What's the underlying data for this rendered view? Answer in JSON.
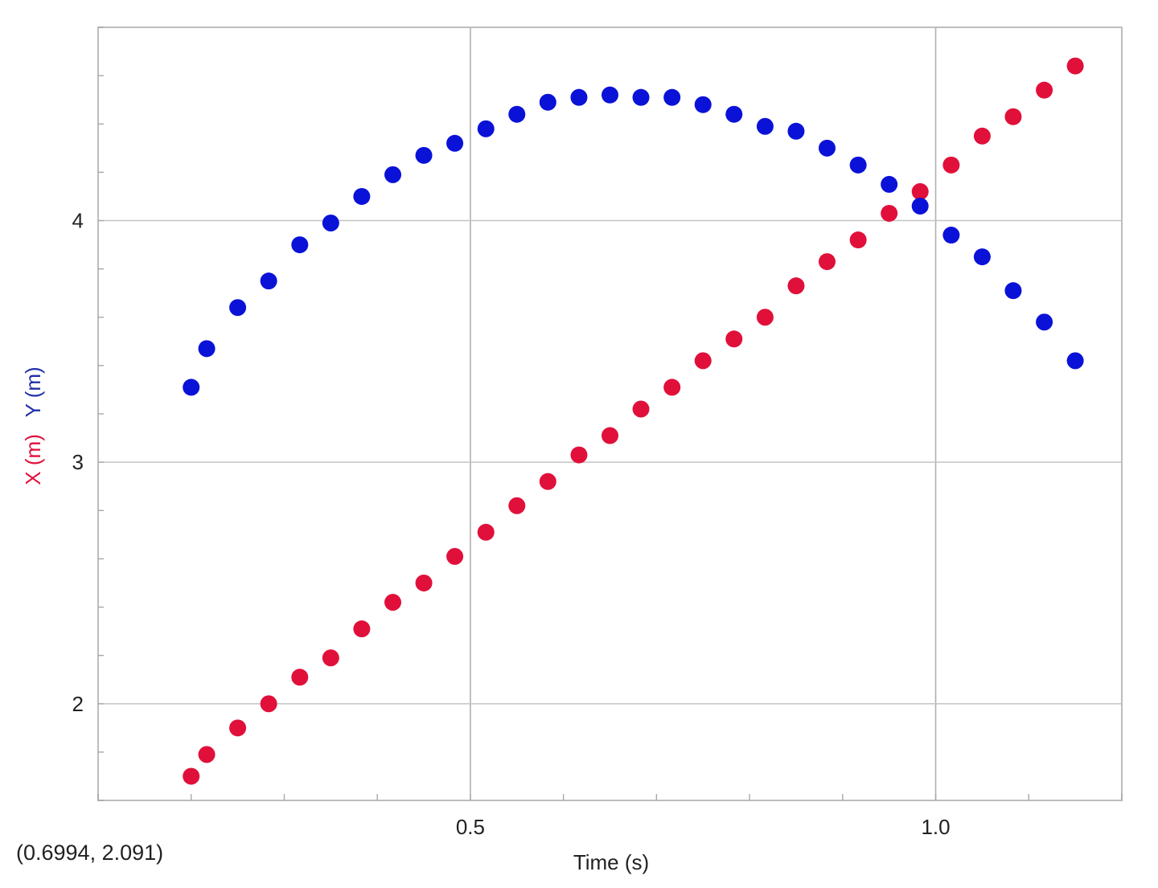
{
  "chart_data": {
    "type": "scatter",
    "xlabel": "Time (s)",
    "ylabel_parts": [
      {
        "text": "X (m)",
        "color": "#e0103a"
      },
      {
        "text": "Y (m)",
        "color": "#1f2fa8"
      }
    ],
    "xlim": [
      0.1,
      1.2
    ],
    "ylim": [
      1.6,
      4.8
    ],
    "x_ticks": [
      0.5,
      1.0
    ],
    "x_tick_labels": [
      "0.5",
      "1.0"
    ],
    "y_ticks": [
      2,
      3,
      4
    ],
    "y_tick_labels": [
      "2",
      "3",
      "4"
    ],
    "grid": true,
    "readout": "(0.6994, 2.091)",
    "series": [
      {
        "key": "x",
        "color": "#e0103a",
        "points": [
          [
            0.2,
            1.7
          ],
          [
            0.2167,
            1.79
          ],
          [
            0.25,
            1.9
          ],
          [
            0.2833,
            2.0
          ],
          [
            0.3167,
            2.11
          ],
          [
            0.35,
            2.19
          ],
          [
            0.3833,
            2.31
          ],
          [
            0.4167,
            2.42
          ],
          [
            0.45,
            2.5
          ],
          [
            0.4833,
            2.61
          ],
          [
            0.5167,
            2.71
          ],
          [
            0.55,
            2.82
          ],
          [
            0.5833,
            2.92
          ],
          [
            0.6167,
            3.03
          ],
          [
            0.65,
            3.11
          ],
          [
            0.6833,
            3.22
          ],
          [
            0.7167,
            3.31
          ],
          [
            0.75,
            3.42
          ],
          [
            0.7833,
            3.51
          ],
          [
            0.8167,
            3.6
          ],
          [
            0.85,
            3.73
          ],
          [
            0.8833,
            3.83
          ],
          [
            0.9167,
            3.92
          ],
          [
            0.95,
            4.03
          ],
          [
            0.9833,
            4.12
          ],
          [
            1.0167,
            4.23
          ],
          [
            1.05,
            4.35
          ],
          [
            1.0833,
            4.43
          ],
          [
            1.1167,
            4.54
          ],
          [
            1.15,
            4.64
          ]
        ]
      },
      {
        "key": "y",
        "color": "#0a12d8",
        "points": [
          [
            0.2,
            3.31
          ],
          [
            0.2167,
            3.47
          ],
          [
            0.25,
            3.64
          ],
          [
            0.2833,
            3.75
          ],
          [
            0.3167,
            3.9
          ],
          [
            0.35,
            3.99
          ],
          [
            0.3833,
            4.1
          ],
          [
            0.4167,
            4.19
          ],
          [
            0.45,
            4.27
          ],
          [
            0.4833,
            4.32
          ],
          [
            0.5167,
            4.38
          ],
          [
            0.55,
            4.44
          ],
          [
            0.5833,
            4.49
          ],
          [
            0.6167,
            4.51
          ],
          [
            0.65,
            4.52
          ],
          [
            0.6833,
            4.51
          ],
          [
            0.7167,
            4.51
          ],
          [
            0.75,
            4.48
          ],
          [
            0.7833,
            4.44
          ],
          [
            0.8167,
            4.39
          ],
          [
            0.85,
            4.37
          ],
          [
            0.8833,
            4.3
          ],
          [
            0.9167,
            4.23
          ],
          [
            0.95,
            4.15
          ],
          [
            0.9833,
            4.06
          ],
          [
            1.0167,
            3.94
          ],
          [
            1.05,
            3.85
          ],
          [
            1.0833,
            3.71
          ],
          [
            1.1167,
            3.58
          ],
          [
            1.15,
            3.42
          ]
        ]
      }
    ]
  }
}
